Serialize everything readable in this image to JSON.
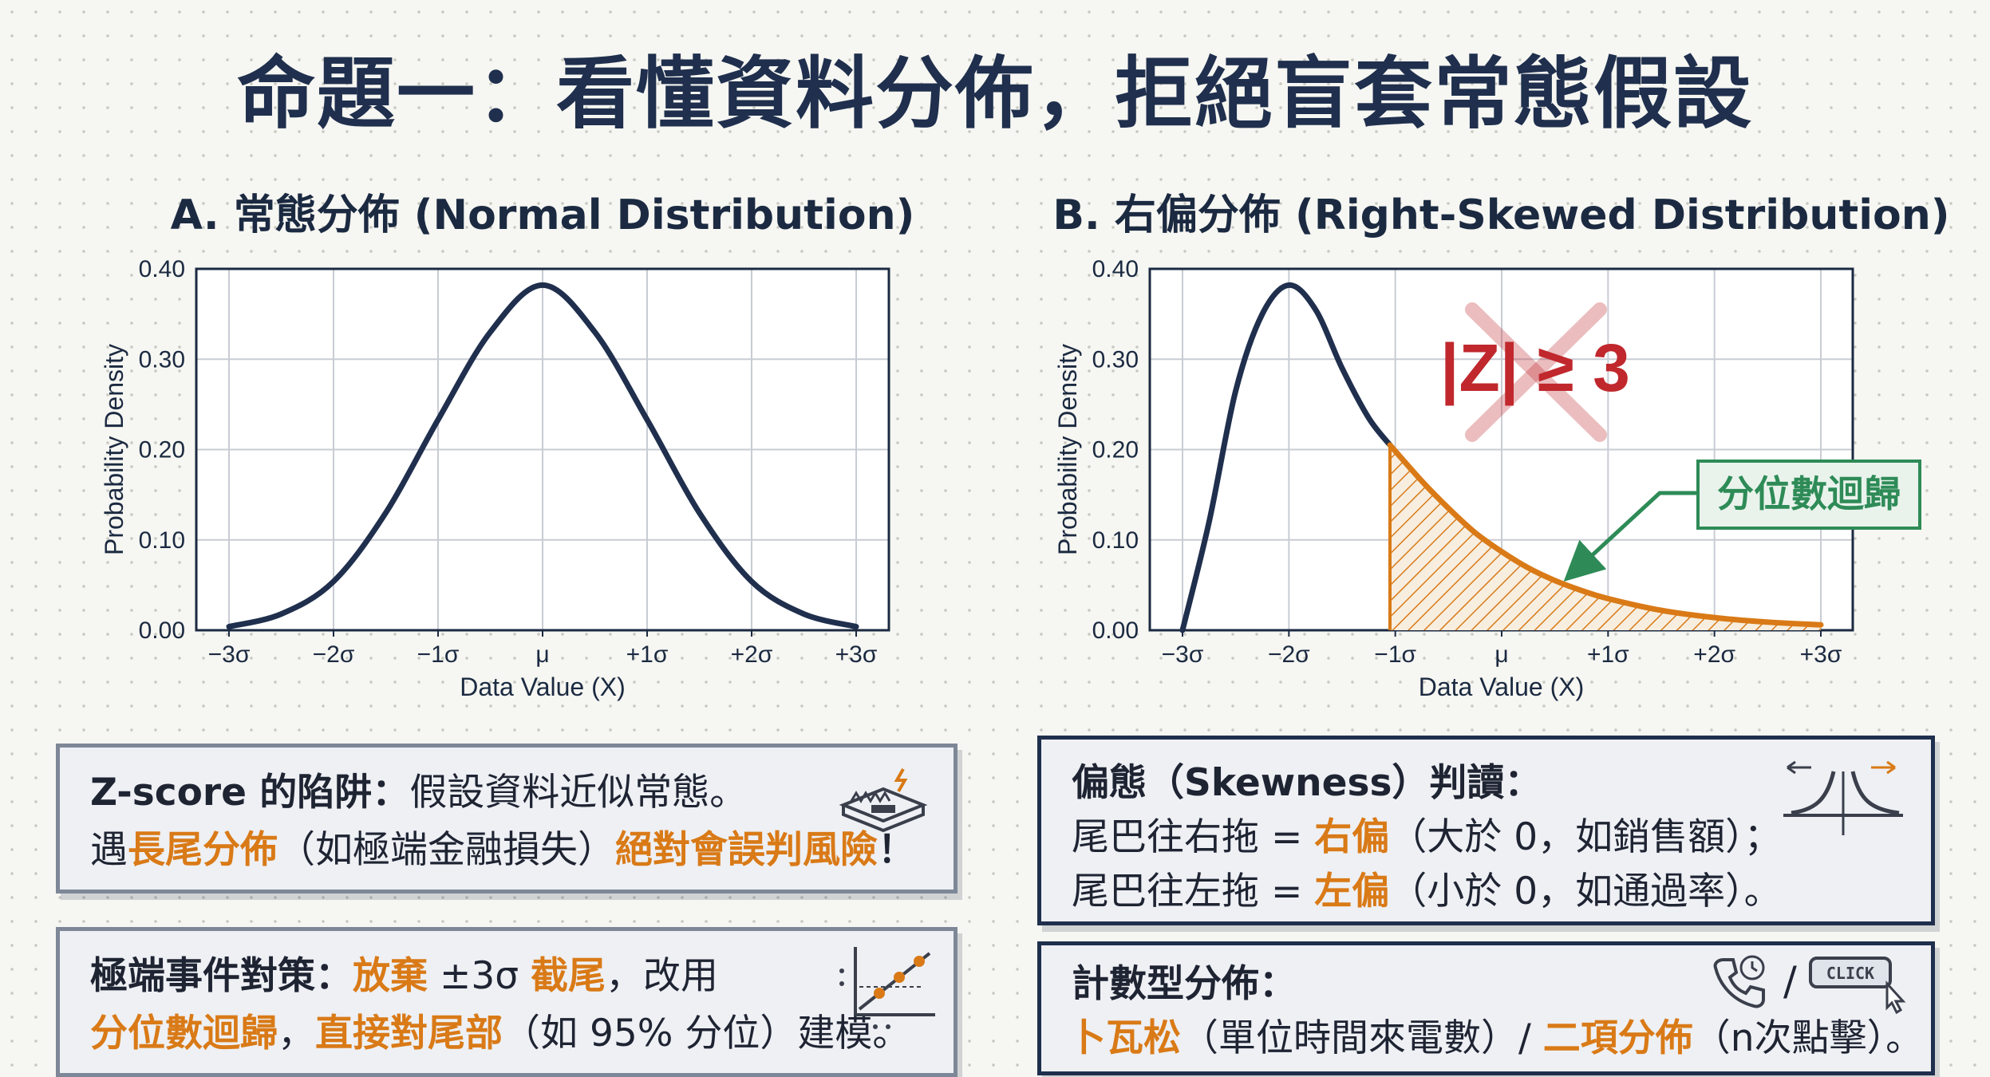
{
  "title": "命題一：看懂資料分佈，拒絕盲套常態假設",
  "colors": {
    "navy": "#1f2f4d",
    "orange": "#d97a17",
    "red": "#c0282d",
    "green": "#2e8b57",
    "grid": "#c8ccd4"
  },
  "chart_data": [
    {
      "type": "line",
      "title": "A. 常態分佈 (Normal Distribution)",
      "xlabel": "Data Value (X)",
      "ylabel": "Probability Density",
      "xlim": [
        -3,
        3
      ],
      "ylim": [
        0,
        0.4
      ],
      "xticks": [
        "−3σ",
        "−2σ",
        "−1σ",
        "μ",
        "+1σ",
        "+2σ",
        "+3σ"
      ],
      "yticks": [
        "0.00",
        "0.10",
        "0.20",
        "0.30",
        "0.40"
      ],
      "grid": true,
      "series": [
        {
          "x": [
            -3,
            -2.5,
            -2,
            -1.5,
            -1,
            -0.5,
            0,
            0.5,
            1,
            1.5,
            2,
            2.5,
            3
          ],
          "y": [
            0.004,
            0.018,
            0.054,
            0.13,
            0.233,
            0.33,
            0.382,
            0.33,
            0.233,
            0.13,
            0.054,
            0.018,
            0.004
          ]
        }
      ]
    },
    {
      "type": "area",
      "title": "B. 右偏分佈 (Right-Skewed Distribution)",
      "xlabel": "Data Value (X)",
      "ylabel": "Probability Density",
      "xlim": [
        -3,
        3
      ],
      "ylim": [
        0,
        0.4
      ],
      "xticks": [
        "−3σ",
        "−2σ",
        "−1σ",
        "μ",
        "+1σ",
        "+2σ",
        "+3σ"
      ],
      "yticks": [
        "0.00",
        "0.10",
        "0.20",
        "0.30",
        "0.40"
      ],
      "grid": true,
      "series": [
        {
          "x": [
            -3,
            -2.75,
            -2.5,
            -2.25,
            -2,
            -1.75,
            -1.5,
            -1.25,
            -1.05,
            -0.75,
            -0.5,
            -0.25,
            0,
            0.25,
            0.5,
            0.75,
            1,
            1.5,
            2,
            2.5,
            3
          ],
          "y": [
            0.0,
            0.12,
            0.265,
            0.35,
            0.382,
            0.355,
            0.29,
            0.235,
            0.205,
            0.165,
            0.135,
            0.108,
            0.087,
            0.069,
            0.055,
            0.044,
            0.035,
            0.022,
            0.014,
            0.009,
            0.006
          ]
        }
      ],
      "shaded_from_x": -1.05,
      "annotations": {
        "crossed_text": "|Z| ≥ 3",
        "label": "分位數迴歸"
      }
    }
  ],
  "box1": {
    "line1_bold": "Z-score 的陷阱：",
    "line1_rest": "假設資料近似常態。",
    "line2_a": "遇",
    "line2_b": "長尾分佈",
    "line2_c": "（如極端金融損失）",
    "line2_d": "絕對會誤判風險",
    "line2_e": "！",
    "icon": "trap-icon"
  },
  "box2": {
    "line1_a": "極端事件對策：",
    "line1_b": "放棄",
    "line1_c": " ±3σ ",
    "line1_d": "截尾",
    "line1_e": "，改用",
    "line2_a": "分位數迴歸",
    "line2_b": "，",
    "line2_c": "直接對尾部",
    "line2_d": "（如 95% 分位）建模。",
    "icon": "regression-plot-icon"
  },
  "box3": {
    "line1_a": "偏態（Skewness）判讀：",
    "line2_a": "尾巴往右拖 = ",
    "line2_b": "右偏",
    "line2_c": "（大於 0，如銷售額）；",
    "line3_a": "尾巴往左拖 = ",
    "line3_b": "左偏",
    "line3_c": "（小於 0，如通過率）。",
    "icon": "skew-curves-icon"
  },
  "box4": {
    "line1_a": "計數型分佈：",
    "line2_a": "卜瓦松",
    "line2_b": "（單位時間來電數）/ ",
    "line2_c": "二項分佈",
    "line2_d": "（n次點擊）。",
    "slash": "/",
    "icon_phone": "phone-icon",
    "icon_click": "click-button-icon",
    "button_text": "CLICK"
  }
}
